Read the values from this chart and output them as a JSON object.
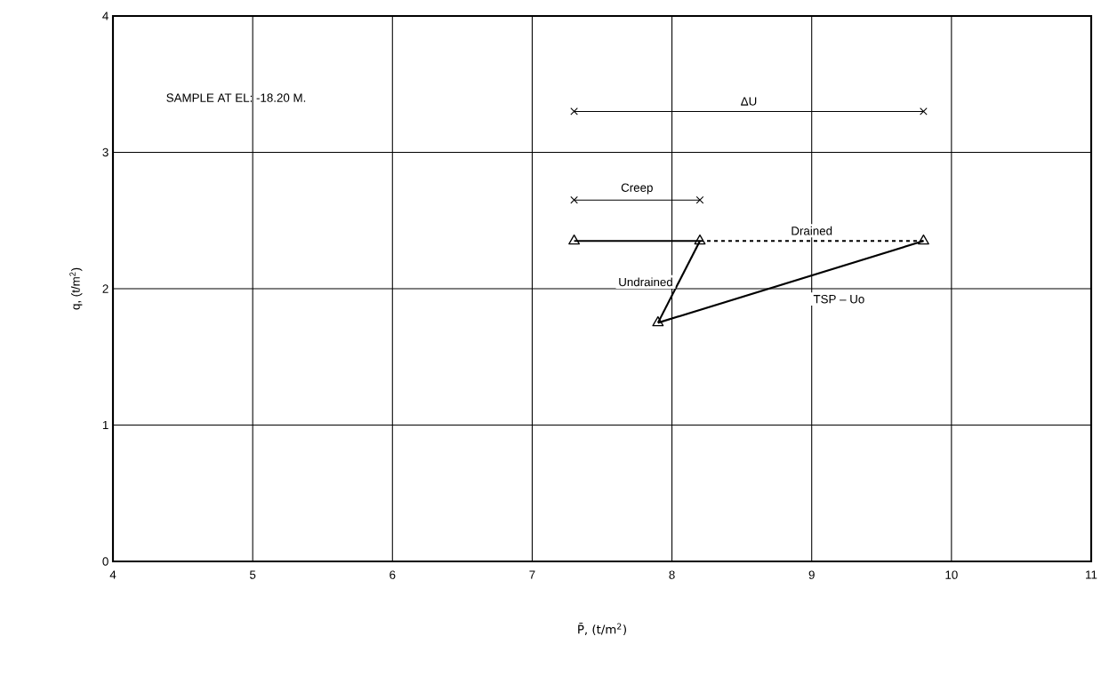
{
  "chart_data": {
    "type": "line",
    "annotations": [
      "SAMPLE AT EL: -18.20 M."
    ],
    "xlabel": "P̄, (t/m$^{2}$)",
    "ylabel": "q, (t/m$^{2}$)",
    "xlim": [
      4,
      11
    ],
    "ylim": [
      0,
      4
    ],
    "xticks": [
      4,
      5,
      6,
      7,
      8,
      9,
      10,
      11
    ],
    "yticks": [
      0,
      1,
      2,
      3,
      4
    ],
    "grid": true,
    "series": [
      {
        "name": "ΔU",
        "color": "#000000",
        "x": [
          7.3,
          9.8
        ],
        "values": [
          3.3,
          3.3
        ],
        "marker": "cross"
      },
      {
        "name": "Creep",
        "color": "#000000",
        "x": [
          7.3,
          8.2
        ],
        "values": [
          2.65,
          2.65
        ],
        "marker": "cross"
      },
      {
        "color": "#000000",
        "x": [
          7.3,
          8.2
        ],
        "values": [
          2.35,
          2.35
        ],
        "line_style": "solid"
      },
      {
        "name": "Drained",
        "color": "#000000",
        "x": [
          8.2,
          9.8
        ],
        "values": [
          2.35,
          2.35
        ],
        "line_style": "dashed"
      },
      {
        "name": "Undrained",
        "color": "#000000",
        "x": [
          7.9,
          8.2
        ],
        "values": [
          1.75,
          2.35
        ]
      },
      {
        "name": "TSP – Uo",
        "color": "#000000",
        "x": [
          7.9,
          9.8
        ],
        "values": [
          1.75,
          2.35
        ]
      },
      {
        "type": "scatter",
        "color": "#000000",
        "x": [
          7.3,
          8.2,
          9.8,
          7.9
        ],
        "values": [
          2.35,
          2.35,
          2.35,
          1.75
        ],
        "marker": "triangle"
      }
    ]
  }
}
